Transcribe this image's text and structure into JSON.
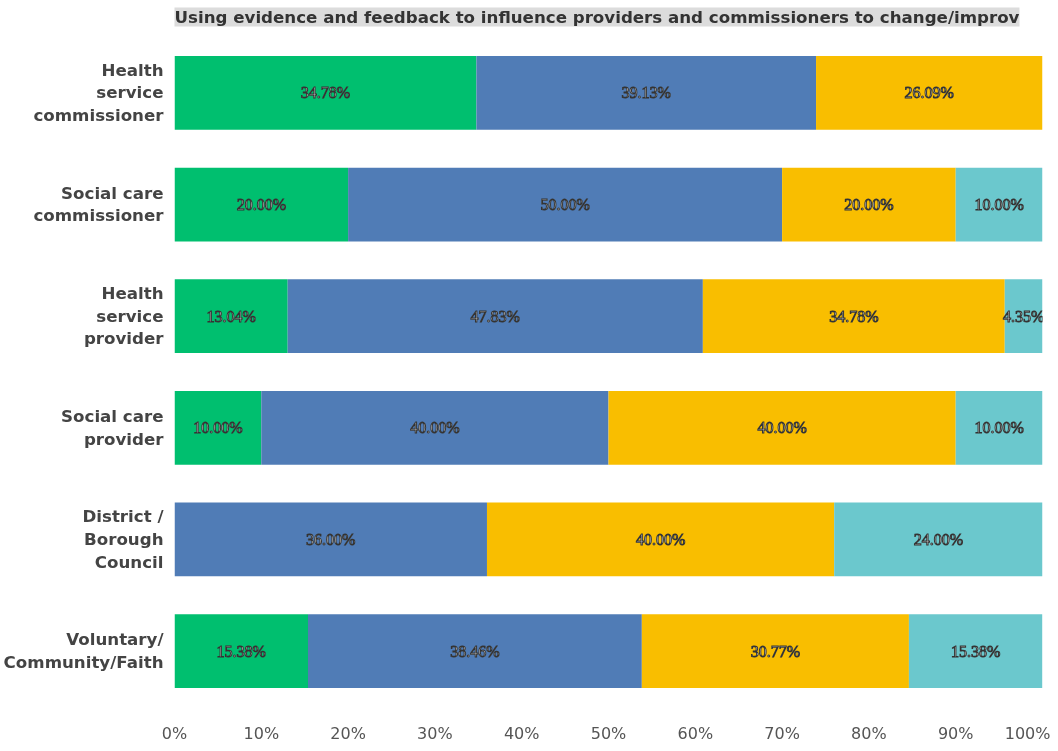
{
  "chart_data": {
    "type": "bar",
    "orientation": "horizontal",
    "stacked": true,
    "title": "Using evidence and feedback to influence providers and commissioners to change/improv",
    "categories": [
      "Health service commissioner",
      "Social care commissioner",
      "Health service provider",
      "Social care provider",
      "District / Borough Council",
      "Voluntary/Community/Faith"
    ],
    "series": [
      {
        "color": "#00bf6f",
        "values": [
          34.78,
          20.0,
          13.04,
          10.0,
          null,
          15.38
        ],
        "value_labels": [
          "34.78%",
          "20.00%",
          "13.04%",
          "10.00%",
          null,
          "15.38%"
        ]
      },
      {
        "color": "#507cb6",
        "values": [
          39.13,
          50.0,
          47.83,
          40.0,
          36.0,
          38.46
        ],
        "value_labels": [
          "39.13%",
          "50.00%",
          "47.83%",
          "40.00%",
          "36.00%",
          "38.46%"
        ]
      },
      {
        "color": "#f9be00",
        "values": [
          26.09,
          20.0,
          34.78,
          40.0,
          40.0,
          30.77
        ],
        "value_labels": [
          "26.09%",
          "20.00%",
          "34.78%",
          "40.00%",
          "40.00%",
          "30.77%"
        ]
      },
      {
        "color": "#6bc8cd",
        "values": [
          null,
          10.0,
          4.35,
          10.0,
          24.0,
          15.38
        ],
        "value_labels": [
          null,
          "10.00%",
          "4.35%",
          "10.00%",
          "24.00%",
          "15.38%"
        ]
      }
    ],
    "xlim": [
      0,
      100
    ],
    "xticks": [
      {
        "value": 0,
        "label": "0%"
      },
      {
        "value": 10,
        "label": "10%"
      },
      {
        "value": 20,
        "label": "20%"
      },
      {
        "value": 30,
        "label": "30%"
      },
      {
        "value": 40,
        "label": "40%"
      },
      {
        "value": 50,
        "label": "50%"
      },
      {
        "value": 60,
        "label": "60%"
      },
      {
        "value": 70,
        "label": "70%"
      },
      {
        "value": 80,
        "label": "80%"
      },
      {
        "value": 90,
        "label": "90%"
      },
      {
        "value": 100,
        "label": "100%"
      }
    ],
    "grid": false
  }
}
